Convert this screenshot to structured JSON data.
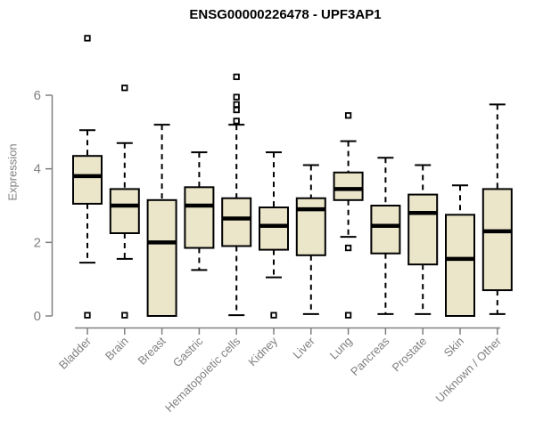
{
  "page": {
    "background": "#ffffff"
  },
  "chart_data": {
    "type": "boxplot",
    "title": "ENSG00000226478 - UPF3AP1",
    "ylabel": "Expression",
    "xlabel": "",
    "y_axis_range": [
      0,
      6
    ],
    "yticks": [
      0,
      2,
      4,
      6
    ],
    "grid": false,
    "legend": "none",
    "categories": [
      "Bladder",
      "Brain",
      "Breast",
      "Gastric",
      "Hematopoietic cells",
      "Kidney",
      "Liver",
      "Lung",
      "Pancreas",
      "Prostate",
      "Skin",
      "Unknown / Other"
    ],
    "series": [
      {
        "name": "Bladder",
        "low": 1.45,
        "q1": 3.05,
        "median": 3.8,
        "q3": 4.35,
        "high": 5.05,
        "outliers": [
          7.55,
          0.02
        ]
      },
      {
        "name": "Brain",
        "low": 1.55,
        "q1": 2.25,
        "median": 3.0,
        "q3": 3.45,
        "high": 4.7,
        "outliers": [
          6.2,
          0.02
        ]
      },
      {
        "name": "Breast",
        "low": 0.0,
        "q1": 0.0,
        "median": 2.0,
        "q3": 3.15,
        "high": 5.2,
        "outliers": []
      },
      {
        "name": "Gastric",
        "low": 1.25,
        "q1": 1.85,
        "median": 3.0,
        "q3": 3.5,
        "high": 4.45,
        "outliers": []
      },
      {
        "name": "Hematopoietic cells",
        "low": 0.02,
        "q1": 1.9,
        "median": 2.65,
        "q3": 3.2,
        "high": 5.2,
        "outliers": [
          6.5,
          5.95,
          5.75,
          5.6,
          5.3
        ]
      },
      {
        "name": "Kidney",
        "low": 1.05,
        "q1": 1.8,
        "median": 2.45,
        "q3": 2.95,
        "high": 4.45,
        "outliers": [
          0.02
        ]
      },
      {
        "name": "Liver",
        "low": 0.05,
        "q1": 1.65,
        "median": 2.9,
        "q3": 3.2,
        "high": 4.1,
        "outliers": []
      },
      {
        "name": "Lung",
        "low": 2.15,
        "q1": 3.15,
        "median": 3.45,
        "q3": 3.9,
        "high": 4.75,
        "outliers": [
          5.45,
          1.85,
          0.02
        ]
      },
      {
        "name": "Pancreas",
        "low": 0.05,
        "q1": 1.7,
        "median": 2.45,
        "q3": 3.0,
        "high": 4.3,
        "outliers": []
      },
      {
        "name": "Prostate",
        "low": 0.05,
        "q1": 1.4,
        "median": 2.8,
        "q3": 3.3,
        "high": 4.1,
        "outliers": []
      },
      {
        "name": "Skin",
        "low": 0.0,
        "q1": 0.0,
        "median": 1.55,
        "q3": 2.75,
        "high": 3.55,
        "outliers": []
      },
      {
        "name": "Unknown / Other",
        "low": 0.05,
        "q1": 0.7,
        "median": 2.3,
        "q3": 3.45,
        "high": 5.75,
        "outliers": []
      }
    ],
    "colors": {
      "background": "#ffffff",
      "box_fill": "#ebe6ca",
      "box_stroke": "#000000",
      "median": "#000000",
      "whisker": "#000000",
      "outlier_fill": "#ffffff",
      "outlier_stroke": "#000000",
      "axis": "#808080",
      "tick_label": "#808080",
      "title": "#000000"
    }
  }
}
